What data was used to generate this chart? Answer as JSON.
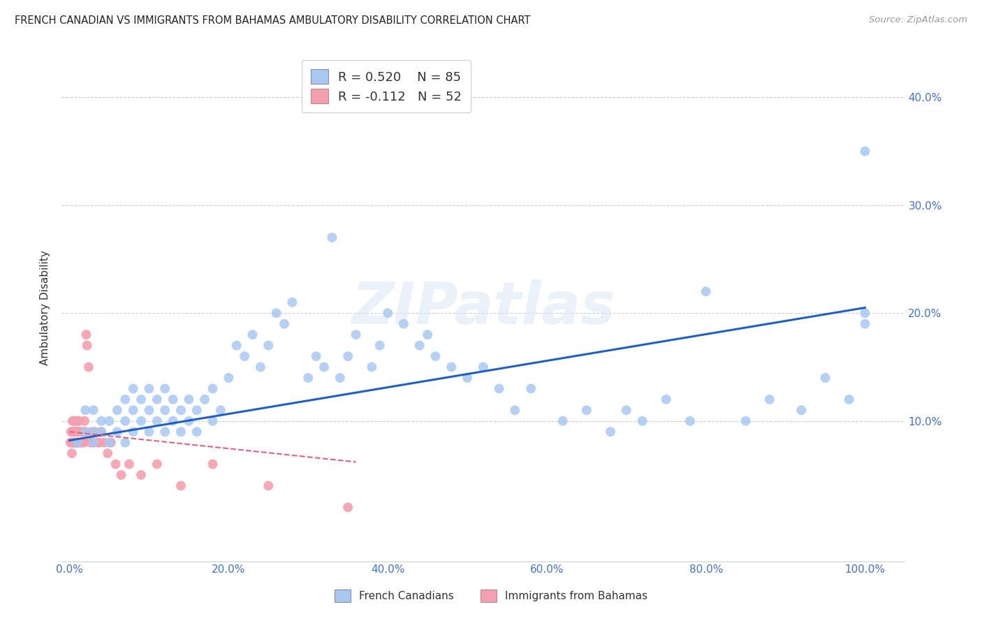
{
  "title": "FRENCH CANADIAN VS IMMIGRANTS FROM BAHAMAS AMBULATORY DISABILITY CORRELATION CHART",
  "source": "Source: ZipAtlas.com",
  "ylabel": "Ambulatory Disability",
  "xlabel_ticks": [
    "0.0%",
    "20.0%",
    "40.0%",
    "60.0%",
    "80.0%",
    "100.0%"
  ],
  "xlabel_vals": [
    0.0,
    0.2,
    0.4,
    0.6,
    0.8,
    1.0
  ],
  "ytick_labels": [
    "10.0%",
    "20.0%",
    "30.0%",
    "40.0%"
  ],
  "ytick_vals": [
    0.1,
    0.2,
    0.3,
    0.4
  ],
  "xlim": [
    -0.01,
    1.05
  ],
  "ylim": [
    -0.03,
    0.44
  ],
  "blue_R": 0.52,
  "blue_N": 85,
  "pink_R": -0.112,
  "pink_N": 52,
  "blue_color": "#a8c8f0",
  "pink_color": "#f4a0b0",
  "blue_line_color": "#2060c0",
  "pink_line_color": "#e06080",
  "background_color": "#ffffff",
  "watermark": "ZIPatlas",
  "legend_label_blue": "French Canadians",
  "legend_label_pink": "Immigrants from Bahamas",
  "blue_x": [
    0.01,
    0.02,
    0.02,
    0.03,
    0.03,
    0.03,
    0.04,
    0.04,
    0.05,
    0.05,
    0.06,
    0.06,
    0.07,
    0.07,
    0.07,
    0.08,
    0.08,
    0.08,
    0.09,
    0.09,
    0.1,
    0.1,
    0.1,
    0.11,
    0.11,
    0.12,
    0.12,
    0.12,
    0.13,
    0.13,
    0.14,
    0.14,
    0.15,
    0.15,
    0.16,
    0.16,
    0.17,
    0.18,
    0.18,
    0.19,
    0.2,
    0.21,
    0.22,
    0.23,
    0.24,
    0.25,
    0.26,
    0.27,
    0.28,
    0.3,
    0.31,
    0.32,
    0.33,
    0.34,
    0.35,
    0.36,
    0.38,
    0.39,
    0.4,
    0.42,
    0.44,
    0.45,
    0.46,
    0.48,
    0.5,
    0.52,
    0.54,
    0.56,
    0.58,
    0.62,
    0.65,
    0.68,
    0.7,
    0.72,
    0.75,
    0.78,
    0.8,
    0.85,
    0.88,
    0.92,
    0.95,
    0.98,
    1.0,
    1.0,
    1.0
  ],
  "blue_y": [
    0.08,
    0.09,
    0.11,
    0.08,
    0.09,
    0.11,
    0.09,
    0.1,
    0.08,
    0.1,
    0.09,
    0.11,
    0.08,
    0.1,
    0.12,
    0.09,
    0.11,
    0.13,
    0.1,
    0.12,
    0.09,
    0.11,
    0.13,
    0.1,
    0.12,
    0.09,
    0.11,
    0.13,
    0.1,
    0.12,
    0.09,
    0.11,
    0.1,
    0.12,
    0.09,
    0.11,
    0.12,
    0.1,
    0.13,
    0.11,
    0.14,
    0.17,
    0.16,
    0.18,
    0.15,
    0.17,
    0.2,
    0.19,
    0.21,
    0.14,
    0.16,
    0.15,
    0.27,
    0.14,
    0.16,
    0.18,
    0.15,
    0.17,
    0.2,
    0.19,
    0.17,
    0.18,
    0.16,
    0.15,
    0.14,
    0.15,
    0.13,
    0.11,
    0.13,
    0.1,
    0.11,
    0.09,
    0.11,
    0.1,
    0.12,
    0.1,
    0.22,
    0.1,
    0.12,
    0.11,
    0.14,
    0.12,
    0.19,
    0.2,
    0.35
  ],
  "pink_x": [
    0.001,
    0.002,
    0.003,
    0.003,
    0.004,
    0.004,
    0.005,
    0.005,
    0.005,
    0.006,
    0.006,
    0.007,
    0.007,
    0.008,
    0.008,
    0.009,
    0.009,
    0.01,
    0.01,
    0.011,
    0.012,
    0.012,
    0.013,
    0.014,
    0.015,
    0.016,
    0.017,
    0.018,
    0.019,
    0.02,
    0.021,
    0.022,
    0.024,
    0.026,
    0.028,
    0.03,
    0.032,
    0.035,
    0.038,
    0.04,
    0.044,
    0.048,
    0.052,
    0.058,
    0.065,
    0.075,
    0.09,
    0.11,
    0.14,
    0.18,
    0.25,
    0.35
  ],
  "pink_y": [
    0.08,
    0.09,
    0.07,
    0.08,
    0.09,
    0.1,
    0.08,
    0.09,
    0.1,
    0.08,
    0.09,
    0.08,
    0.1,
    0.09,
    0.08,
    0.09,
    0.08,
    0.08,
    0.1,
    0.09,
    0.08,
    0.1,
    0.09,
    0.08,
    0.09,
    0.08,
    0.09,
    0.08,
    0.1,
    0.09,
    0.18,
    0.17,
    0.15,
    0.08,
    0.09,
    0.08,
    0.09,
    0.08,
    0.08,
    0.09,
    0.08,
    0.07,
    0.08,
    0.06,
    0.05,
    0.06,
    0.05,
    0.06,
    0.04,
    0.06,
    0.04,
    0.02
  ],
  "blue_line_x": [
    0.0,
    1.0
  ],
  "blue_line_y": [
    0.082,
    0.205
  ],
  "pink_line_x": [
    0.0,
    0.36
  ],
  "pink_line_y": [
    0.09,
    0.062
  ]
}
